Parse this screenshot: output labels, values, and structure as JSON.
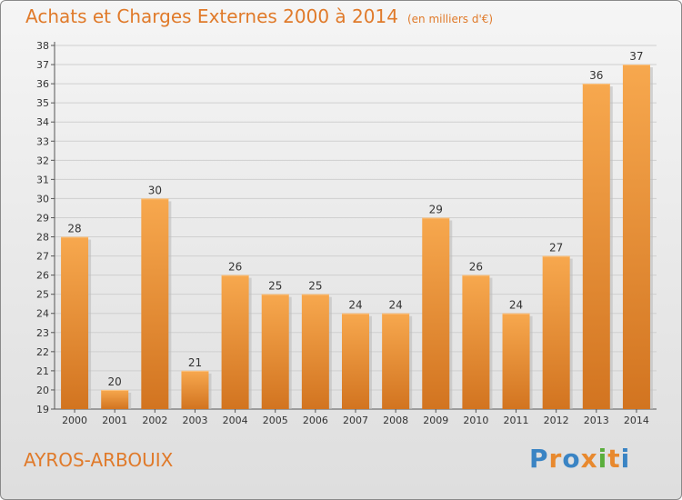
{
  "title": "Achats et Charges Externes 2000 à 2014",
  "subtitle": "(en milliers d'€)",
  "town": "AYROS-ARBOUIX",
  "logo": {
    "letters": [
      "P",
      "r",
      "o",
      "x",
      "i",
      "t",
      "i"
    ],
    "colors": [
      "#3a84c4",
      "#e8892e",
      "#3a84c4",
      "#e8892e",
      "#5aae3c",
      "#e8892e",
      "#3a84c4"
    ]
  },
  "colors": {
    "bar_light": "#f7a84e",
    "bar_dark": "#d27420",
    "accent": "#e07a2a"
  },
  "chart_data": {
    "type": "bar",
    "categories": [
      "2000",
      "2001",
      "2002",
      "2003",
      "2004",
      "2005",
      "2006",
      "2007",
      "2008",
      "2009",
      "2010",
      "2011",
      "2012",
      "2013",
      "2014"
    ],
    "values": [
      28,
      20,
      30,
      21,
      26,
      25,
      25,
      24,
      24,
      29,
      26,
      24,
      27,
      36,
      37
    ],
    "yticks": [
      "19",
      "20",
      "21",
      "22",
      "23",
      "24",
      "25",
      "26",
      "27",
      "28",
      "29",
      "30",
      "31",
      "32",
      "33",
      "34",
      "35",
      "36",
      "37",
      "38"
    ],
    "ylim": [
      19,
      38
    ],
    "grid": true,
    "legend": "none"
  }
}
